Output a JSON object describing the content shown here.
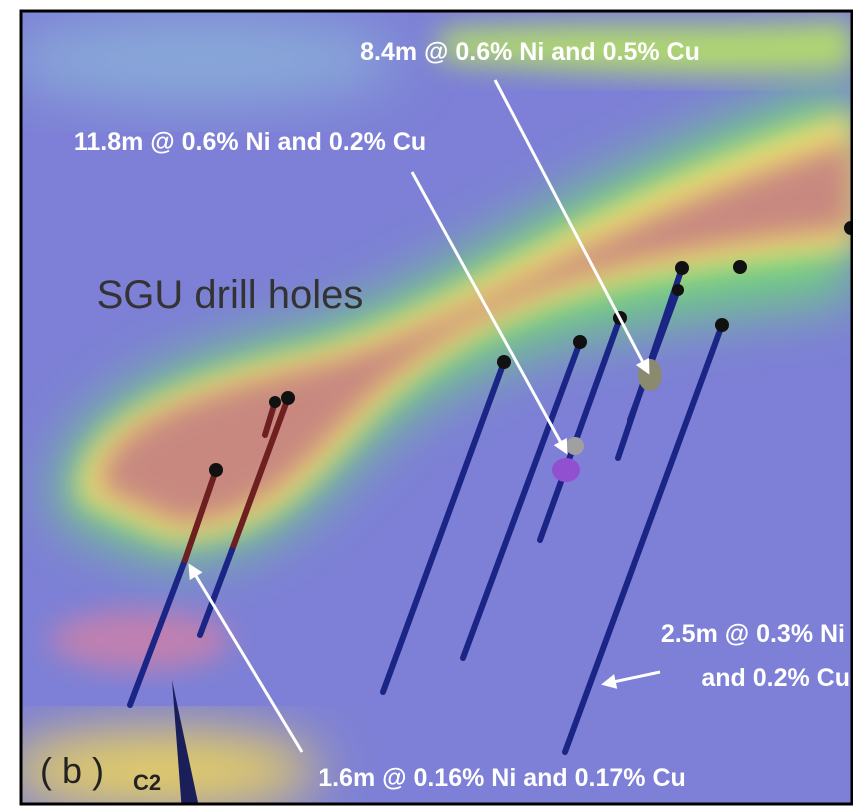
{
  "panel_label": "( b )",
  "title": "SGU drill holes",
  "feature_label": "C2",
  "annotations": [
    {
      "lines": [
        "8.4m @ 0.6% Ni and 0.5% Cu"
      ]
    },
    {
      "lines": [
        "11.8m @ 0.6% Ni and 0.2% Cu"
      ]
    },
    {
      "lines": [
        "2.5m @ 0.3% Ni",
        "and 0.2% Cu"
      ]
    },
    {
      "lines": [
        "1.6m @ 0.16% Ni and 0.17% Cu"
      ]
    }
  ]
}
